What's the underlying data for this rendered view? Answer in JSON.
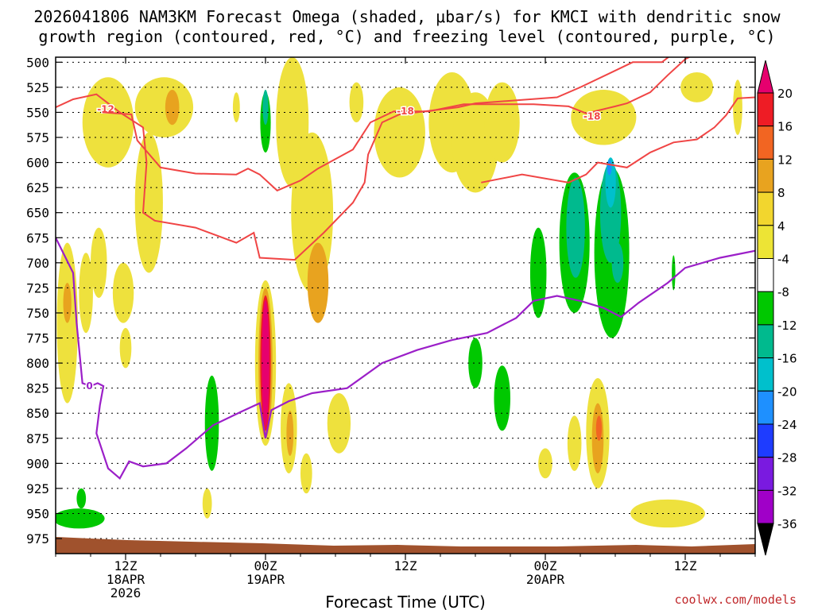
{
  "chart_data": {
    "type": "heatmap",
    "title_line1": "2026041806 NAM3KM Forecast Omega (shaded, μbar/s) for KMCI with dendritic snow",
    "title_line2": "growth region (contoured, red, °C) and freezing level (contoured, purple, °C)",
    "xlabel": "Forecast Time (UTC)",
    "credit": "coolwx.com/models",
    "x_range_hours": [
      0,
      60
    ],
    "pressure_range": [
      500,
      995
    ],
    "y_ticks": [
      500,
      525,
      550,
      575,
      600,
      625,
      650,
      675,
      700,
      725,
      750,
      775,
      800,
      825,
      850,
      875,
      900,
      925,
      950,
      975
    ],
    "x_ticks": [
      {
        "hour": 6,
        "line1": "12Z",
        "line2": "18APR",
        "line3": "2026"
      },
      {
        "hour": 18,
        "line1": "00Z",
        "line2": "19APR",
        "line3": ""
      },
      {
        "hour": 30,
        "line1": "12Z",
        "line2": "",
        "line3": ""
      },
      {
        "hour": 42,
        "line1": "00Z",
        "line2": "20APR",
        "line3": ""
      },
      {
        "hour": 54,
        "line1": "12Z",
        "line2": "",
        "line3": ""
      }
    ],
    "colorbar": {
      "labels": [
        "20",
        "16",
        "12",
        "8",
        "4",
        "-4",
        "-8",
        "-12",
        "-16",
        "-20",
        "-24",
        "-28",
        "-32",
        "-36"
      ],
      "colors": [
        "#ee1c25",
        "#f26522",
        "#e8a31f",
        "#f2d62e",
        "#ede435",
        "#ffffff",
        "#00c800",
        "#00ba8e",
        "#00c0cc",
        "#1e90ff",
        "#1e3cff",
        "#7a1ae0",
        "#a000c8",
        "#a9a9a9"
      ],
      "top_color": "#e6006e",
      "bottom_color": "#000000"
    },
    "omega_regions": [
      {
        "t": 4.5,
        "p": 560,
        "dt": 2.2,
        "dp": 90,
        "v": 4
      },
      {
        "t": 8.0,
        "p": 640,
        "dt": 1.2,
        "dp": 140,
        "v": 4
      },
      {
        "t": 9.3,
        "p": 545,
        "dt": 2.5,
        "dp": 60,
        "v": 4
      },
      {
        "t": 10.0,
        "p": 545,
        "dt": 0.6,
        "dp": 35,
        "v": 8
      },
      {
        "t": 5.8,
        "p": 730,
        "dt": 0.9,
        "dp": 60,
        "v": 4
      },
      {
        "t": 1.0,
        "p": 760,
        "dt": 0.9,
        "dp": 160,
        "v": 4
      },
      {
        "t": 1.0,
        "p": 740,
        "dt": 0.35,
        "dp": 40,
        "v": 8
      },
      {
        "t": 2.6,
        "p": 730,
        "dt": 0.6,
        "dp": 80,
        "v": 4
      },
      {
        "t": 3.7,
        "p": 700,
        "dt": 0.7,
        "dp": 70,
        "v": 4
      },
      {
        "t": 6.0,
        "p": 785,
        "dt": 0.5,
        "dp": 40,
        "v": 4
      },
      {
        "t": 15.5,
        "p": 545,
        "dt": 0.3,
        "dp": 30,
        "v": 4
      },
      {
        "t": 18.0,
        "p": 800,
        "dt": 0.9,
        "dp": 165,
        "v": 4
      },
      {
        "t": 18.0,
        "p": 800,
        "dt": 0.6,
        "dp": 150,
        "v": 8
      },
      {
        "t": 18.0,
        "p": 800,
        "dt": 0.45,
        "dp": 135,
        "v": 16
      },
      {
        "t": 18.0,
        "p": 800,
        "dt": 0.32,
        "dp": 125,
        "v": 20
      },
      {
        "t": 18.0,
        "p": 560,
        "dt": 0.45,
        "dp": 60,
        "v": -4
      },
      {
        "t": 18.0,
        "p": 545,
        "dt": 0.25,
        "dp": 35,
        "v": -8
      },
      {
        "t": 20.3,
        "p": 560,
        "dt": 1.4,
        "dp": 130,
        "v": 4
      },
      {
        "t": 22.0,
        "p": 650,
        "dt": 1.8,
        "dp": 160,
        "v": 4
      },
      {
        "t": 22.5,
        "p": 720,
        "dt": 0.9,
        "dp": 80,
        "v": 8
      },
      {
        "t": 20.0,
        "p": 865,
        "dt": 0.7,
        "dp": 90,
        "v": 4
      },
      {
        "t": 20.1,
        "p": 870,
        "dt": 0.3,
        "dp": 45,
        "v": 8
      },
      {
        "t": 21.5,
        "p": 910,
        "dt": 0.5,
        "dp": 40,
        "v": 4
      },
      {
        "t": 24.3,
        "p": 860,
        "dt": 1.0,
        "dp": 60,
        "v": 4
      },
      {
        "t": 29.5,
        "p": 570,
        "dt": 2.2,
        "dp": 90,
        "v": 4
      },
      {
        "t": 34.0,
        "p": 560,
        "dt": 2.0,
        "dp": 100,
        "v": 4
      },
      {
        "t": 36.0,
        "p": 580,
        "dt": 2.0,
        "dp": 100,
        "v": 4
      },
      {
        "t": 38.3,
        "p": 560,
        "dt": 1.5,
        "dp": 80,
        "v": 4
      },
      {
        "t": 25.8,
        "p": 540,
        "dt": 0.6,
        "dp": 40,
        "v": 4
      },
      {
        "t": 47.0,
        "p": 555,
        "dt": 2.8,
        "dp": 55,
        "v": 4
      },
      {
        "t": 55.0,
        "p": 525,
        "dt": 1.4,
        "dp": 30,
        "v": 4
      },
      {
        "t": 58.5,
        "p": 545,
        "dt": 0.4,
        "dp": 55,
        "v": 4
      },
      {
        "t": 46.5,
        "p": 870,
        "dt": 1.0,
        "dp": 110,
        "v": 4
      },
      {
        "t": 46.5,
        "p": 875,
        "dt": 0.5,
        "dp": 70,
        "v": 8
      },
      {
        "t": 46.6,
        "p": 865,
        "dt": 0.25,
        "dp": 25,
        "v": 12
      },
      {
        "t": 44.5,
        "p": 880,
        "dt": 0.6,
        "dp": 55,
        "v": 4
      },
      {
        "t": 42.0,
        "p": 900,
        "dt": 0.6,
        "dp": 30,
        "v": 4
      },
      {
        "t": 52.5,
        "p": 950,
        "dt": 3.2,
        "dp": 28,
        "v": 4
      },
      {
        "t": 13.0,
        "p": 940,
        "dt": 0.4,
        "dp": 30,
        "v": 4
      },
      {
        "t": 41.4,
        "p": 710,
        "dt": 0.7,
        "dp": 90,
        "v": -4
      },
      {
        "t": 44.5,
        "p": 680,
        "dt": 1.3,
        "dp": 140,
        "v": -4
      },
      {
        "t": 44.6,
        "p": 665,
        "dt": 0.8,
        "dp": 100,
        "v": -8
      },
      {
        "t": 47.7,
        "p": 690,
        "dt": 1.5,
        "dp": 170,
        "v": -4
      },
      {
        "t": 47.6,
        "p": 650,
        "dt": 0.9,
        "dp": 100,
        "v": -8
      },
      {
        "t": 47.6,
        "p": 620,
        "dt": 0.45,
        "dp": 50,
        "v": -12
      },
      {
        "t": 47.5,
        "p": 605,
        "dt": 0.2,
        "dp": 15,
        "v": -16
      },
      {
        "t": 48.2,
        "p": 700,
        "dt": 0.5,
        "dp": 40,
        "v": -8
      },
      {
        "t": 36.0,
        "p": 800,
        "dt": 0.6,
        "dp": 50,
        "v": -4
      },
      {
        "t": 38.3,
        "p": 835,
        "dt": 0.7,
        "dp": 65,
        "v": -4
      },
      {
        "t": 13.4,
        "p": 860,
        "dt": 0.6,
        "dp": 95,
        "v": -4
      },
      {
        "t": 53.0,
        "p": 710,
        "dt": 0.15,
        "dp": 35,
        "v": -4
      },
      {
        "t": 2.0,
        "p": 955,
        "dt": 2.2,
        "dp": 20,
        "v": -4
      },
      {
        "t": 2.2,
        "p": 935,
        "dt": 0.4,
        "dp": 20,
        "v": -4
      }
    ],
    "red_contours": [
      {
        "label": "-12",
        "label_at": [
          4.3,
          547
        ],
        "points": [
          [
            0,
            545
          ],
          [
            1.5,
            537
          ],
          [
            3.5,
            532
          ],
          [
            5.5,
            550
          ],
          [
            7.5,
            565
          ],
          [
            7.8,
            600
          ],
          [
            7.5,
            650
          ],
          [
            8.5,
            658
          ],
          [
            12,
            665
          ],
          [
            15.5,
            680
          ],
          [
            17,
            670
          ],
          [
            17.5,
            695
          ],
          [
            20.5,
            697
          ],
          [
            23,
            670
          ],
          [
            25.5,
            640
          ],
          [
            26.5,
            620
          ],
          [
            26.8,
            592
          ],
          [
            28,
            560
          ],
          [
            29.5,
            552
          ],
          [
            34.5,
            545
          ],
          [
            36,
            541
          ],
          [
            43,
            535
          ],
          [
            45,
            525
          ],
          [
            49.5,
            500
          ],
          [
            52,
            500
          ],
          [
            53,
            491
          ]
        ]
      },
      {
        "label": "-18",
        "label_at": [
          30,
          549
        ],
        "points": [
          [
            4,
            550
          ],
          [
            6.5,
            552
          ],
          [
            7,
            578
          ],
          [
            9,
            605
          ],
          [
            12,
            611
          ],
          [
            15.5,
            612
          ],
          [
            16.5,
            606
          ],
          [
            17.5,
            612
          ],
          [
            19,
            628
          ],
          [
            21,
            618
          ],
          [
            22.5,
            606
          ],
          [
            25.5,
            587
          ],
          [
            27,
            560
          ],
          [
            29,
            549
          ],
          [
            32,
            549
          ],
          [
            35,
            542
          ],
          [
            41,
            542
          ],
          [
            44,
            544
          ],
          [
            45.5,
            551
          ],
          [
            48,
            544
          ],
          [
            49,
            541
          ],
          [
            51,
            530
          ],
          [
            52.5,
            513
          ],
          [
            54,
            497
          ],
          [
            55,
            491
          ]
        ]
      },
      {
        "label": "-18",
        "label_at": [
          46.0,
          554
        ],
        "points": [
          [
            36.5,
            620
          ],
          [
            40,
            612
          ],
          [
            44,
            620
          ],
          [
            45.5,
            612
          ],
          [
            46.5,
            600
          ],
          [
            49,
            605
          ],
          [
            51,
            590
          ],
          [
            53,
            580
          ],
          [
            55,
            577
          ],
          [
            56.5,
            565
          ],
          [
            57.5,
            553
          ],
          [
            58.5,
            536
          ],
          [
            60,
            535
          ]
        ]
      }
    ],
    "purple_contours": [
      {
        "label": "0",
        "label_at": [
          2.9,
          823
        ],
        "points": [
          [
            0,
            675
          ],
          [
            1.5,
            710
          ],
          [
            1.8,
            760
          ],
          [
            2.3,
            820
          ],
          [
            3.0,
            823
          ],
          [
            3.6,
            820
          ],
          [
            4.1,
            823
          ],
          [
            3.8,
            842
          ],
          [
            3.5,
            870
          ],
          [
            4.5,
            905
          ],
          [
            5.5,
            915
          ],
          [
            6.3,
            898
          ],
          [
            7.5,
            903
          ],
          [
            9.5,
            900
          ],
          [
            11.2,
            885
          ],
          [
            13.5,
            862
          ],
          [
            16.0,
            848
          ],
          [
            17.5,
            840
          ],
          [
            18.0,
            875
          ],
          [
            18.5,
            847
          ],
          [
            20.0,
            838
          ],
          [
            22.0,
            830
          ],
          [
            25.0,
            825
          ],
          [
            28.0,
            800
          ],
          [
            31.0,
            787
          ],
          [
            34.0,
            777
          ],
          [
            37.0,
            770
          ],
          [
            39.5,
            755
          ],
          [
            41.0,
            738
          ],
          [
            43.0,
            733
          ],
          [
            45.0,
            738
          ],
          [
            47.0,
            745
          ],
          [
            48.5,
            754
          ],
          [
            50.0,
            740
          ],
          [
            52.5,
            720
          ],
          [
            54.0,
            705
          ],
          [
            57.0,
            695
          ],
          [
            60.0,
            688
          ]
        ]
      }
    ]
  }
}
